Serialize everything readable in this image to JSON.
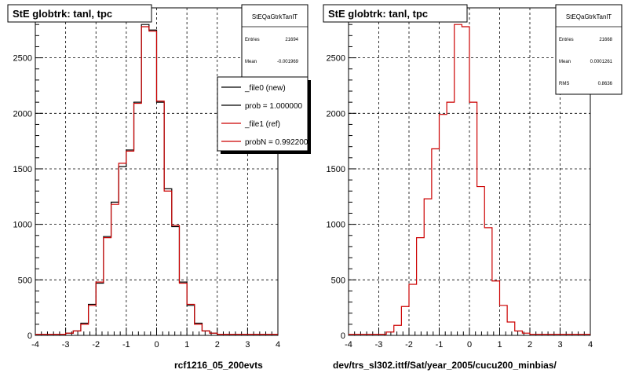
{
  "colors": {
    "new": "#000000",
    "ref": "#cc0000",
    "grid": "#000000",
    "frame": "#000000"
  },
  "panels": [
    {
      "title": "StE globtrk: tanl, tpc",
      "xlabel": "rcf1216_05_200evts",
      "stats": {
        "name": "StEQaGtrkTanlT",
        "rows": [
          {
            "label": "Entries",
            "value": "21694"
          },
          {
            "label": "Mean",
            "value": "-0.001969"
          }
        ]
      },
      "legend": {
        "entries": [
          {
            "label": "_file0 (new)",
            "color": "#000000"
          },
          {
            "label": "prob = 1.000000",
            "color": "#000000"
          },
          {
            "label": "_file1 (ref)",
            "color": "#cc0000"
          },
          {
            "label": "probN = 0.992200",
            "color": "#cc0000"
          }
        ]
      }
    },
    {
      "title": "StE globtrk: tanl, tpc",
      "xlabel": "dev/trs_sl302.ittf/Sat/year_2005/cucu200_minbias/",
      "stats": {
        "name": "StEQaGtrkTanlT",
        "rows": [
          {
            "label": "Entries",
            "value": "21668"
          },
          {
            "label": "Mean",
            "value": "0.0001261"
          },
          {
            "label": "RMS",
            "value": "0.8636"
          }
        ]
      },
      "legend": null
    }
  ],
  "chart_data": [
    {
      "type": "histogram",
      "title": "StE globtrk: tanl, tpc",
      "xlabel": "rcf1216_05_200evts",
      "xlim": [
        -4,
        4
      ],
      "ylim": [
        0,
        2950
      ],
      "xticks": [
        "-4",
        "-3",
        "-2",
        "-1",
        "0",
        "1",
        "2",
        "3",
        "4"
      ],
      "yticks": [
        "0",
        "500",
        "1000",
        "1500",
        "2000",
        "2500"
      ],
      "grid": true,
      "legend_position": "top-right",
      "bin_edges": [
        -4.0,
        -3.75,
        -3.5,
        -3.25,
        -3.0,
        -2.75,
        -2.5,
        -2.25,
        -2.0,
        -1.75,
        -1.5,
        -1.25,
        -1.0,
        -0.75,
        -0.5,
        -0.25,
        0.0,
        0.25,
        0.5,
        0.75,
        1.0,
        1.25,
        1.5,
        1.75,
        2.0,
        2.25,
        2.5,
        2.75,
        3.0,
        3.25,
        3.5,
        3.75,
        4.0
      ],
      "series": [
        {
          "name": "_file0 (new)",
          "color": "#000000",
          "values": [
            10,
            10,
            10,
            10,
            20,
            40,
            110,
            280,
            470,
            890,
            1200,
            1520,
            1670,
            2100,
            2800,
            2750,
            2100,
            1320,
            980,
            480,
            270,
            110,
            40,
            20,
            10,
            10,
            10,
            10,
            10,
            10,
            10,
            10
          ]
        },
        {
          "name": "_file1 (ref)",
          "color": "#cc0000",
          "values": [
            10,
            10,
            10,
            10,
            20,
            40,
            100,
            270,
            480,
            880,
            1180,
            1550,
            1660,
            2090,
            2780,
            2740,
            2110,
            1300,
            990,
            470,
            280,
            100,
            40,
            20,
            10,
            10,
            10,
            10,
            10,
            10,
            10,
            10
          ]
        }
      ]
    },
    {
      "type": "histogram",
      "title": "StE globtrk: tanl, tpc",
      "xlabel": "dev/trs_sl302.ittf/Sat/year_2005/cucu200_minbias/",
      "xlim": [
        -4,
        4
      ],
      "ylim": [
        0,
        2950
      ],
      "xticks": [
        "-4",
        "-3",
        "-2",
        "-1",
        "0",
        "1",
        "2",
        "3",
        "4"
      ],
      "yticks": [
        "0",
        "500",
        "1000",
        "1500",
        "2000",
        "2500"
      ],
      "grid": true,
      "bin_edges": [
        -4.0,
        -3.75,
        -3.5,
        -3.25,
        -3.0,
        -2.75,
        -2.5,
        -2.25,
        -2.0,
        -1.75,
        -1.5,
        -1.25,
        -1.0,
        -0.75,
        -0.5,
        -0.25,
        0.0,
        0.25,
        0.5,
        0.75,
        1.0,
        1.25,
        1.5,
        1.75,
        2.0,
        2.25,
        2.5,
        2.75,
        3.0,
        3.25,
        3.5,
        3.75,
        4.0
      ],
      "series": [
        {
          "name": "",
          "color": "#cc0000",
          "values": [
            10,
            10,
            10,
            10,
            10,
            30,
            90,
            260,
            460,
            880,
            1230,
            1680,
            1990,
            2100,
            2800,
            2780,
            2100,
            1340,
            970,
            490,
            270,
            120,
            40,
            20,
            10,
            10,
            10,
            10,
            10,
            10,
            10,
            10
          ]
        }
      ]
    }
  ]
}
